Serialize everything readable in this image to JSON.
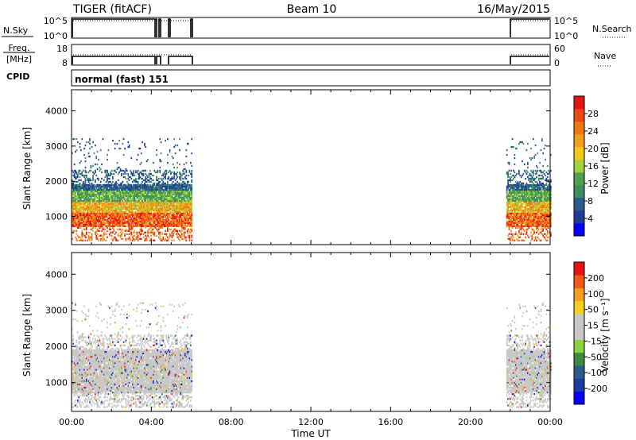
{
  "header": {
    "radar": "TIGER (fitACF)",
    "beam": "Beam 10",
    "date": "16/May/2015"
  },
  "strips": {
    "nsky_label": "N.Sky",
    "nsky_ticks": [
      "10^5",
      "10^0"
    ],
    "nsearch_label": "N.Search",
    "nsearch_ticks": [
      "10^5",
      "10^0"
    ],
    "freq_label_1": "Freq.",
    "freq_label_2": "[MHz]",
    "freq_ticks": [
      "18",
      "8"
    ],
    "nave_label": "Nave",
    "nave_ticks": [
      "60",
      "0"
    ],
    "cpid_label": "CPID",
    "cpid_text": "normal (fast) 151"
  },
  "colors": {
    "power_scale": [
      "#0000ff",
      "#1e3c96",
      "#2d5a8c",
      "#3c8c64",
      "#50a050",
      "#a0d23c",
      "#f0c81e",
      "#f0a01e",
      "#f07814",
      "#f04614",
      "#e61414"
    ],
    "velocity_scale": [
      "#e61414",
      "#f05a14",
      "#f0a01e",
      "#f0d21e",
      "#c8c8c8",
      "#c8c8c8",
      "#8cd23c",
      "#3c8c3c",
      "#2d5a8c",
      "#1e3ca0",
      "#0000ff"
    ]
  },
  "chart_data": [
    {
      "type": "heatmap",
      "name": "power",
      "ylabel": "Slant Range [km]",
      "yticks": [
        "1000",
        "2000",
        "3000",
        "4000"
      ],
      "ylim": [
        200,
        4600
      ],
      "xlim_hours": [
        0,
        24
      ],
      "colorbar_label": "Power [dB]",
      "colorbar_ticks": [
        "4",
        "8",
        "12",
        "16",
        "20",
        "24",
        "28"
      ],
      "data_hours": [
        [
          0.0,
          6.0
        ],
        [
          21.8,
          24.0
        ]
      ]
    },
    {
      "type": "heatmap",
      "name": "velocity",
      "ylabel": "Slant Range [km]",
      "yticks": [
        "1000",
        "2000",
        "3000",
        "4000"
      ],
      "ylim": [
        200,
        4600
      ],
      "xlim_hours": [
        0,
        24
      ],
      "colorbar_label": "Velocity [m s⁻¹]",
      "colorbar_ticks": [
        "200",
        "100",
        "50",
        "15",
        "-15",
        "-50",
        "-100",
        "-200"
      ],
      "xlabel": "Time UT",
      "xticks": [
        "00:00",
        "04:00",
        "08:00",
        "12:00",
        "16:00",
        "20:00",
        "00:00"
      ],
      "data_hours": [
        [
          0.0,
          6.0
        ],
        [
          21.8,
          24.0
        ]
      ]
    }
  ]
}
